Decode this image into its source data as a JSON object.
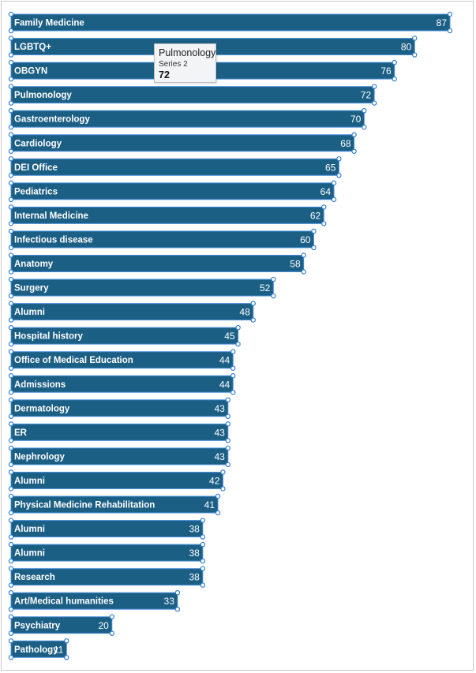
{
  "chart_data": {
    "type": "bar",
    "orientation": "horizontal",
    "categories": [
      "Family Medicine",
      "LGBTQ+",
      "OBGYN",
      "Pulmonology",
      "Gastroenterology",
      "Cardiology",
      "DEI Office",
      "Pediatrics",
      "Internal Medicine",
      "Infectious disease",
      "Anatomy",
      "Surgery",
      "Alumni",
      "Hospital history",
      "Office of Medical Education",
      "Admissions",
      "Dermatology",
      "ER",
      "Nephrology",
      "Alumni",
      "Physical Medicine Rehabilitation",
      "Alumni",
      "Alumni",
      "Research",
      "Art/Medical humanities",
      "Psychiatry",
      "Pathology"
    ],
    "series": [
      {
        "name": "Series 2",
        "values": [
          87,
          80,
          76,
          72,
          70,
          68,
          65,
          64,
          62,
          60,
          58,
          52,
          48,
          45,
          44,
          44,
          43,
          43,
          43,
          42,
          41,
          38,
          38,
          38,
          33,
          20,
          11
        ]
      }
    ],
    "bar_color": "#1c5f85",
    "label_color": "#ffffff",
    "xlim": [
      0,
      87
    ],
    "grid": false,
    "legend": "none"
  },
  "tooltip": {
    "category": "Pulmonology",
    "series": "Series 2",
    "value": "72"
  }
}
